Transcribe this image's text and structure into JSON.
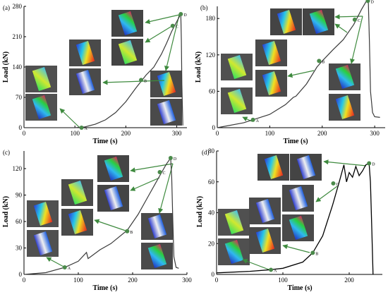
{
  "colors": {
    "curve": "#3a3a3a",
    "curve_d": "#000000",
    "marker": "#4a8a4a",
    "arrow": "#3e8a3e",
    "axis": "#000000"
  },
  "chart_data": [
    {
      "type": "line",
      "panel_label": "(a)",
      "xlabel": "Time (s)",
      "ylabel": "Load (kN)",
      "xlim": [
        0,
        320
      ],
      "ylim": [
        0,
        280
      ],
      "xticks": [
        0,
        100,
        200,
        300
      ],
      "yticks": [
        0,
        70,
        140,
        210,
        280
      ],
      "series": [
        {
          "x": [
            0,
            100,
            120,
            140,
            160,
            180,
            200,
            220,
            240,
            255,
            270,
            280,
            290,
            300,
            306,
            308,
            309,
            310,
            312
          ],
          "y": [
            0,
            0,
            2,
            8,
            18,
            35,
            60,
            92,
            122,
            140,
            170,
            195,
            222,
            245,
            258,
            262,
            200,
            100,
            5
          ]
        }
      ],
      "points": [
        {
          "label": "A",
          "x": 113,
          "y": 0
        },
        {
          "label": "B",
          "x": 230,
          "y": 110
        },
        {
          "label": "C",
          "x": 292,
          "y": 235
        },
        {
          "label": "D",
          "x": 308,
          "y": 262
        }
      ]
    },
    {
      "type": "line",
      "panel_label": "(b)",
      "xlabel": "Time (s)",
      "ylabel": "Load (kN)",
      "xlim": [
        0,
        320
      ],
      "ylim": [
        0,
        200
      ],
      "xticks": [
        0,
        100,
        200,
        300
      ],
      "yticks": [
        0,
        60,
        120,
        180
      ],
      "series": [
        {
          "x": [
            0,
            50,
            100,
            130,
            145,
            150,
            170,
            190,
            200,
            220,
            240,
            260,
            275,
            285,
            288,
            290,
            292,
            296,
            300,
            310
          ],
          "y": [
            0,
            8,
            22,
            38,
            50,
            52,
            72,
            100,
            110,
            128,
            145,
            170,
            195,
            210,
            205,
            140,
            60,
            25,
            18,
            17
          ]
        }
      ],
      "points": [
        {
          "label": "A",
          "x": 68,
          "y": 13
        },
        {
          "label": "B",
          "x": 194,
          "y": 110
        },
        {
          "label": "C",
          "x": 262,
          "y": 178
        },
        {
          "label": "D",
          "x": 287,
          "y": 209
        }
      ]
    },
    {
      "type": "line",
      "panel_label": "(c)",
      "xlabel": "Time (s)",
      "ylabel": "Load (kN)",
      "xlim": [
        0,
        300
      ],
      "ylim": [
        0,
        140
      ],
      "xticks": [
        0,
        100,
        200,
        300
      ],
      "yticks": [
        0,
        30,
        60,
        90,
        120
      ],
      "series": [
        {
          "x": [
            0,
            40,
            75,
            100,
            115,
            118,
            140,
            160,
            190,
            210,
            230,
            250,
            262,
            270,
            272,
            274,
            276,
            280,
            285
          ],
          "y": [
            0,
            2,
            8,
            15,
            25,
            18,
            28,
            35,
            50,
            68,
            90,
            112,
            125,
            132,
            110,
            60,
            20,
            8,
            7
          ]
        }
      ],
      "points": [
        {
          "label": "A",
          "x": 75,
          "y": 8
        },
        {
          "label": "B",
          "x": 190,
          "y": 49
        },
        {
          "label": "C",
          "x": 250,
          "y": 116
        },
        {
          "label": "D",
          "x": 270,
          "y": 132
        }
      ]
    },
    {
      "type": "line",
      "panel_label": "(d)",
      "xlabel": "Time (s)",
      "ylabel": "Load (kN)",
      "xlim": [
        0,
        250
      ],
      "ylim": [
        0,
        80
      ],
      "xticks": [
        0,
        100,
        200
      ],
      "yticks": [
        0,
        20,
        40,
        60,
        80
      ],
      "series": [
        {
          "x": [
            0,
            50,
            80,
            100,
            130,
            145,
            160,
            175,
            185,
            192,
            196,
            200,
            205,
            210,
            215,
            220,
            225,
            230,
            232,
            234,
            236
          ],
          "y": [
            1,
            2,
            3,
            4,
            8,
            14,
            25,
            45,
            60,
            71,
            60,
            66,
            63,
            70,
            64,
            67,
            71,
            72,
            60,
            30,
            0
          ]
        }
      ],
      "points": [
        {
          "label": "A",
          "x": 82,
          "y": 3
        },
        {
          "label": "B",
          "x": 145,
          "y": 14
        },
        {
          "label": "C",
          "x": 176,
          "y": 59
        },
        {
          "label": "D",
          "x": 230,
          "y": 72
        }
      ]
    }
  ]
}
